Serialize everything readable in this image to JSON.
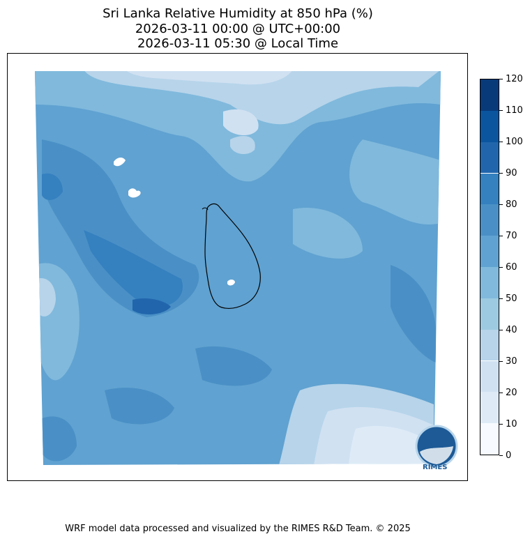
{
  "title": {
    "line1": "Sri Lanka Relative Humidity at 850 hPa (%)",
    "line2": "2026-03-11 00:00 @ UTC+00:00",
    "line3": "2026-03-11 05:30 @ Local Time"
  },
  "colorbar": {
    "ticks": [
      "0",
      "10",
      "20",
      "30",
      "40",
      "50",
      "60",
      "70",
      "80",
      "90",
      "100",
      "110",
      "120"
    ],
    "colors": [
      "#f7fbff",
      "#deebf7",
      "#d0e1f2",
      "#b7d4ea",
      "#9ecae1",
      "#80b9dc",
      "#60a2d1",
      "#4a90c6",
      "#3580bf",
      "#2166ac",
      "#0b559f",
      "#083a7a"
    ]
  },
  "logo": {
    "text": "RIMES"
  },
  "footer": "WRF model data processed and visualized by the RIMES R&D Team. © 2025"
}
